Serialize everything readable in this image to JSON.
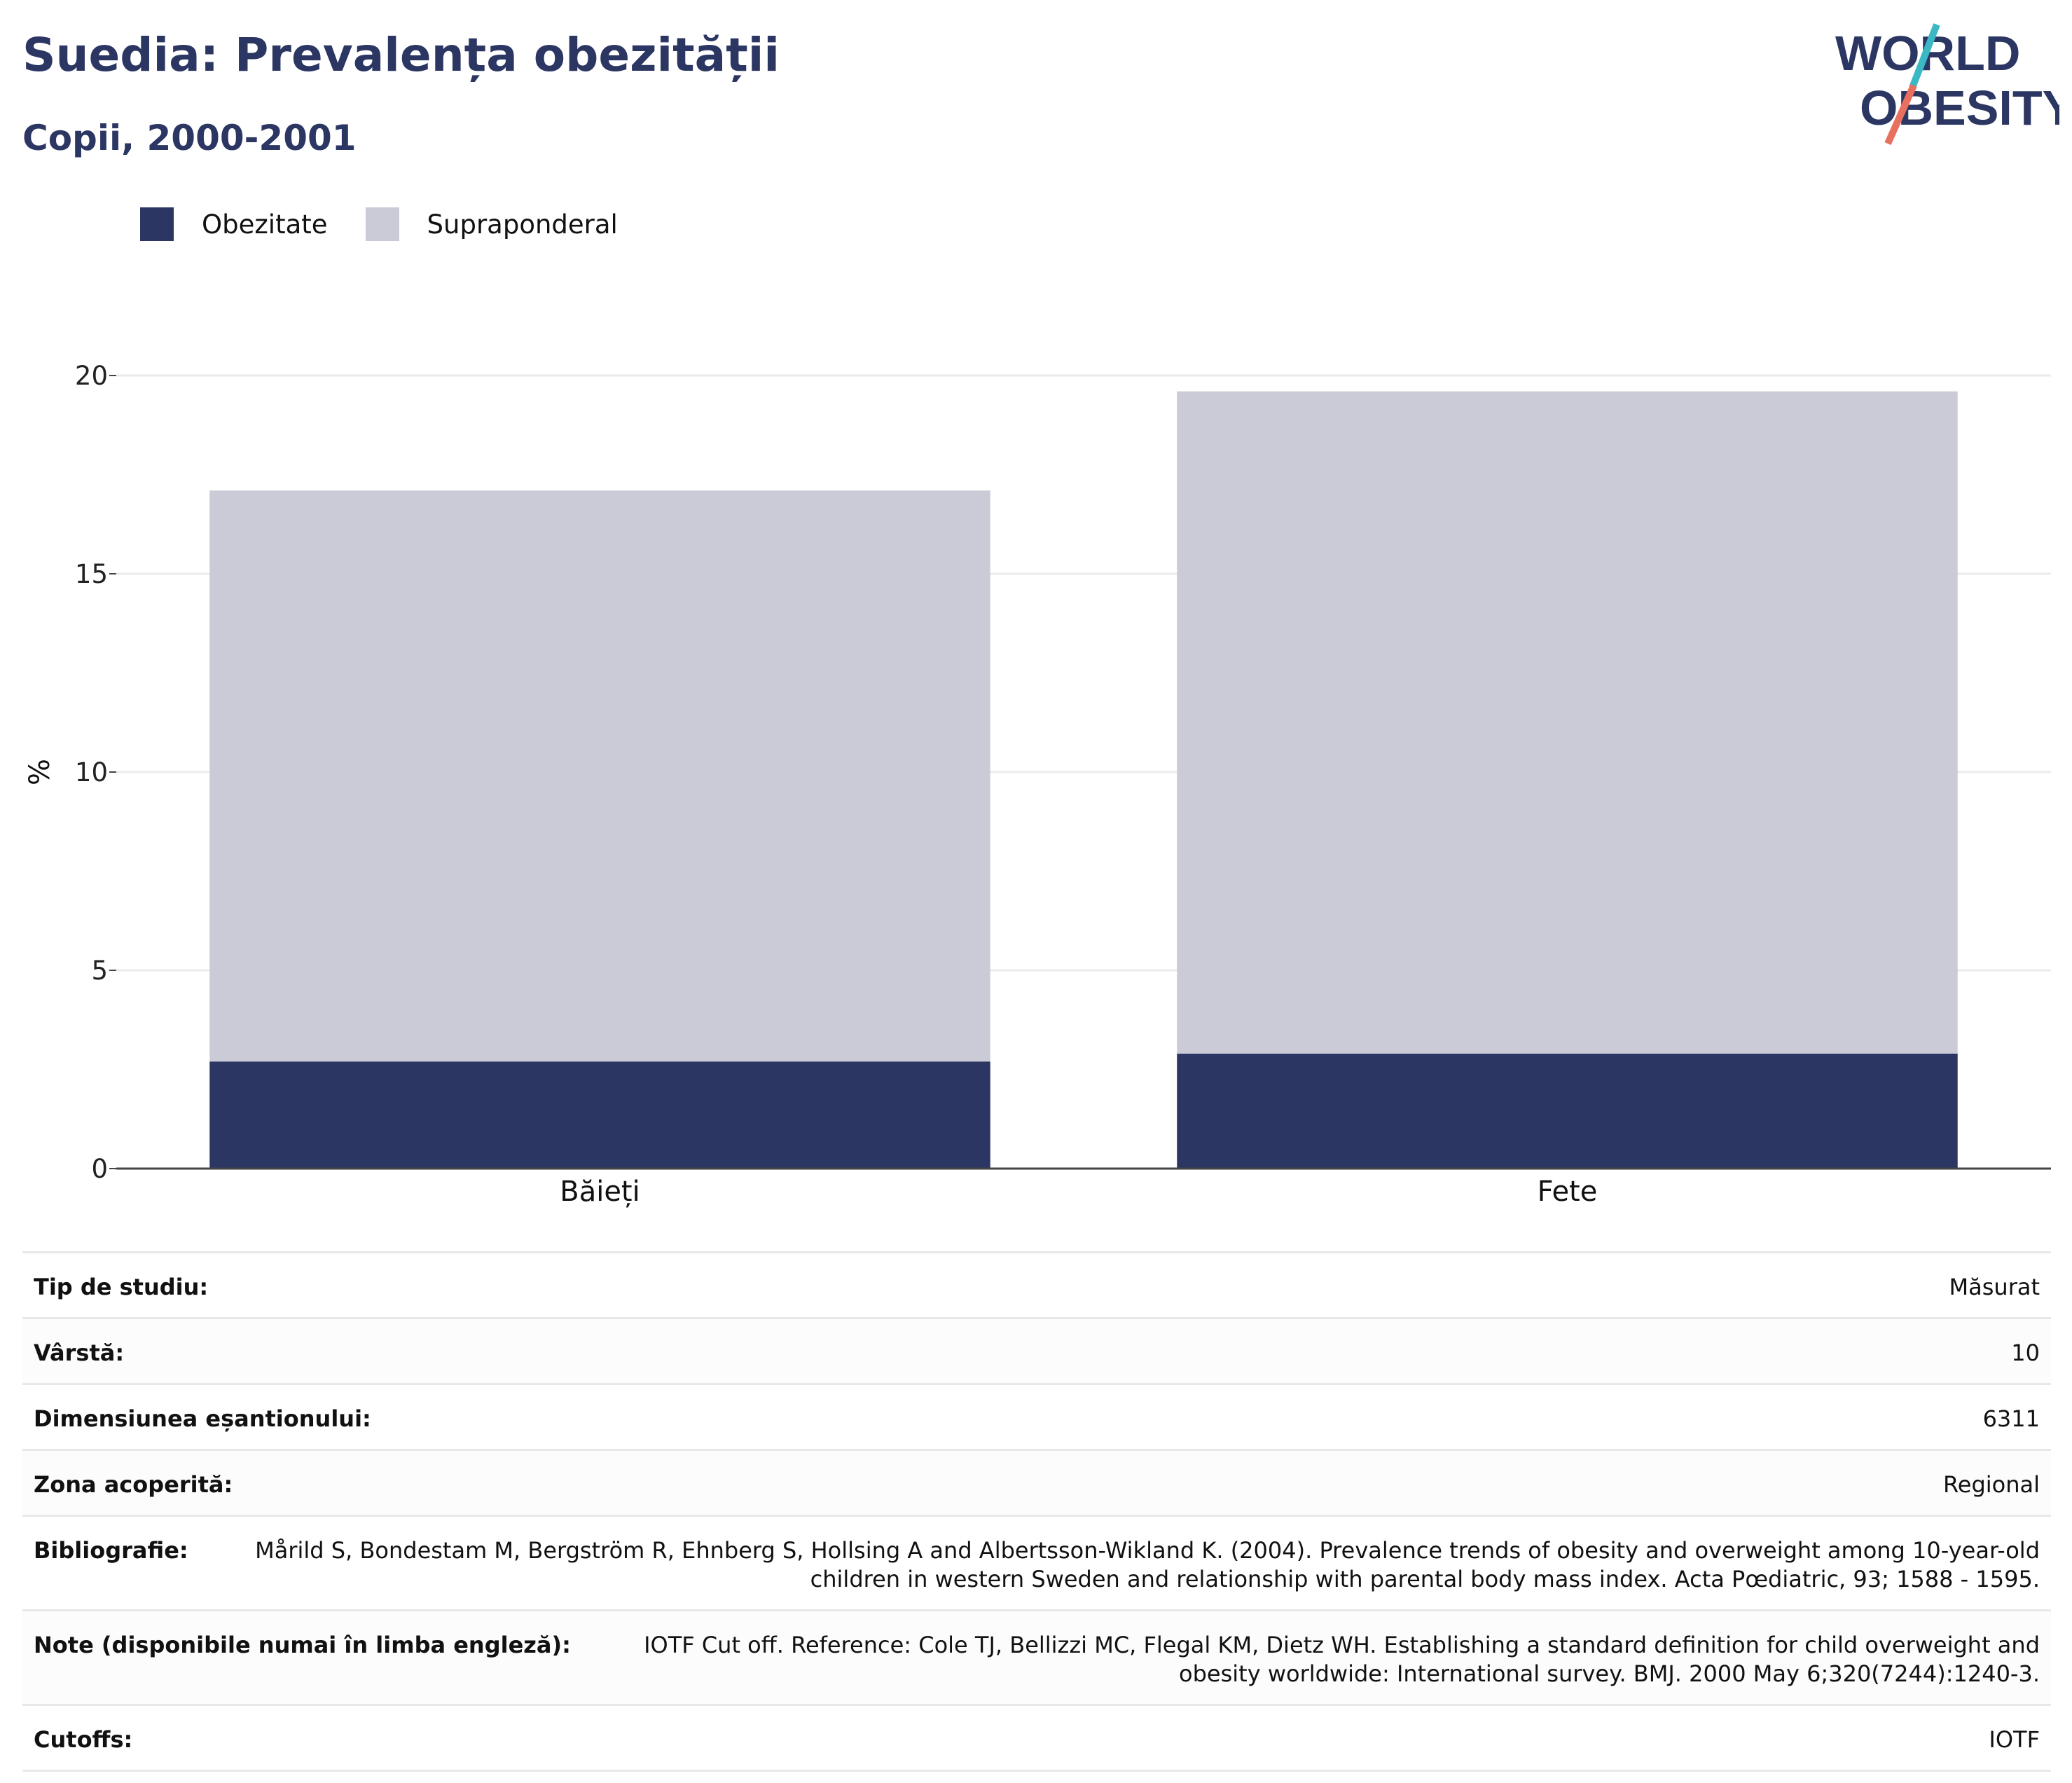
{
  "header": {
    "title": "Suedia: Prevalența obezității",
    "subtitle": "Copii, 2000-2001"
  },
  "logo": {
    "line1": "WORLD",
    "line2": "OBESITY",
    "colors": {
      "text": "#2b3663",
      "slash_top": "#3bb8c4",
      "slash_bottom": "#e8705f"
    }
  },
  "legend": [
    {
      "label": "Obezitate",
      "color": "#2b3663"
    },
    {
      "label": "Supraponderal",
      "color": "#cacbd6"
    }
  ],
  "chart_data": {
    "type": "bar",
    "stacked": true,
    "categories": [
      "Băieți",
      "Fete"
    ],
    "series": [
      {
        "name": "Obezitate",
        "values": [
          2.7,
          2.9
        ],
        "color": "#2b3663"
      },
      {
        "name": "Supraponderal",
        "values": [
          14.4,
          16.7
        ],
        "color": "#cacbd6"
      }
    ],
    "title": "Suedia: Prevalența obezității",
    "subtitle": "Copii, 2000-2001",
    "xlabel": "",
    "ylabel": "%",
    "ylim": [
      0,
      20
    ],
    "yticks": [
      0,
      5,
      10,
      15,
      20
    ],
    "grid": true,
    "legend_position": "top-left"
  },
  "info_table": [
    {
      "label": "Tip de studiu:",
      "value": "Măsurat"
    },
    {
      "label": "Vârstă:",
      "value": "10"
    },
    {
      "label": "Dimensiunea eșantionului:",
      "value": "6311"
    },
    {
      "label": "Zona acoperită:",
      "value": "Regional"
    },
    {
      "label": "Bibliografie:",
      "value": "Mårild S, Bondestam M, Bergström R, Ehnberg S, Hollsing A and Albertsson-Wikland K. (2004). Prevalence trends of obesity and overweight among 10-year-old children in western Sweden and relationship with parental body mass index. Acta Pœdiatric, 93; 1588 - 1595."
    },
    {
      "label": "Note (disponibile numai în limba engleză):",
      "value": "IOTF Cut off. Reference: Cole TJ, Bellizzi MC, Flegal KM, Dietz WH. Establishing a standard definition for child overweight and obesity worldwide: International survey. BMJ. 2000 May 6;320(7244):1240-3."
    },
    {
      "label": "Cutoffs:",
      "value": "IOTF"
    }
  ]
}
